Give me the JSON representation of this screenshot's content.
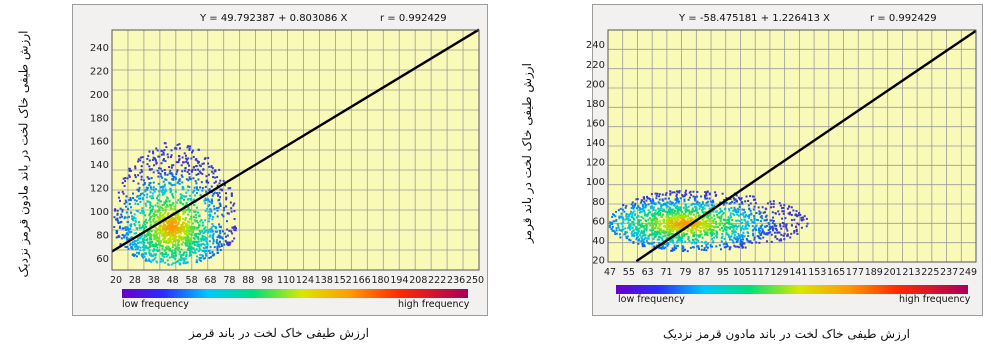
{
  "chart_data": [
    {
      "type": "scatter",
      "title": "Y = 49.792387 + 0.803086 X",
      "r_value": "r = 0.992429",
      "xlabel": "ارزش طیفی خاک لخت در باند قرمز",
      "ylabel": "ارزش طیفی خاک لخت در باند مادون قرمز نزدیک",
      "x_tick_labels": [
        "20",
        "28",
        "38",
        "48",
        "58",
        "68",
        "78",
        "88",
        "98",
        "110",
        "124",
        "138",
        "152",
        "166",
        "180",
        "194",
        "208",
        "222",
        "236",
        "250"
      ],
      "y_tick_labels": [
        "60",
        "80",
        "100",
        "120",
        "140",
        "160",
        "180",
        "200",
        "220",
        "240"
      ],
      "xlim": [
        20,
        256
      ],
      "ylim": [
        50,
        255
      ],
      "grid": true,
      "regression_line": {
        "x": [
          20,
          256
        ],
        "y": [
          65.85,
          255.38
        ]
      },
      "point_cloud": {
        "x_min": 20,
        "x_max": 100,
        "y_min": 55,
        "y_max": 160,
        "density_peak": {
          "x": 58,
          "y": 88
        }
      },
      "legend": {
        "low_label": "low frequency",
        "high_label": "high frequency",
        "placement": "bottom"
      }
    },
    {
      "type": "scatter",
      "title": "Y = -58.475181 + 1.226413 X",
      "r_value": "r = 0.992429",
      "xlabel": "ارزش طیفی خاک لخت در باند مادون قرمز نزدیک",
      "ylabel": "ارزش طیفی خاک لخت در باند قرمز",
      "x_tick_labels": [
        "47",
        "55",
        "63",
        "71",
        "79",
        "87",
        "95",
        "105",
        "117",
        "129",
        "141",
        "153",
        "165",
        "177",
        "189",
        "201",
        "213",
        "225",
        "237",
        "249"
      ],
      "y_tick_labels": [
        "20",
        "40",
        "60",
        "80",
        "100",
        "120",
        "140",
        "160",
        "180",
        "200",
        "220",
        "240"
      ],
      "xlim": [
        47,
        255
      ],
      "ylim": [
        18,
        255
      ],
      "grid": true,
      "regression_line": {
        "x": [
          63,
          255
        ],
        "y": [
          18.79,
          254.26
        ]
      },
      "point_cloud": {
        "x_min": 47,
        "x_max": 160,
        "y_min": 30,
        "y_max": 92,
        "density_peak": {
          "x": 90,
          "y": 58
        }
      },
      "legend": {
        "low_label": "low frequency",
        "high_label": "high frequency",
        "placement": "bottom"
      }
    }
  ]
}
